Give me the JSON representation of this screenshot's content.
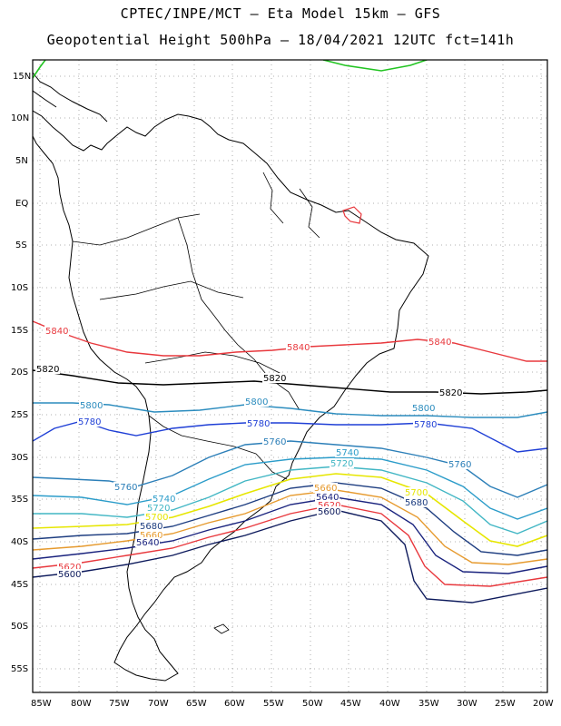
{
  "header": {
    "line1": "CPTEC/INPE/MCT –  Eta Model 15km – GFS",
    "line2": "Geopotential Height 500hPa – 18/04/2021 12UTC fct=141h"
  },
  "map": {
    "lat_labels": [
      "15N",
      "10N",
      "5N",
      "EQ",
      "5S",
      "10S",
      "15S",
      "20S",
      "25S",
      "30S",
      "35S",
      "40S",
      "45S",
      "50S",
      "55S"
    ],
    "lon_labels": [
      "85W",
      "80W",
      "75W",
      "70W",
      "65W",
      "60W",
      "55W",
      "50W",
      "45W",
      "40W",
      "35W",
      "30W",
      "25W",
      "20W"
    ],
    "contours": [
      {
        "level": "5840",
        "color": "#e8383d",
        "labels": [
          "5840",
          "5840",
          "5840"
        ]
      },
      {
        "level": "5820",
        "color": "#000000",
        "labels": [
          "5820",
          "5820",
          "5820"
        ]
      },
      {
        "level": "5800",
        "color": "#2b8cbe",
        "labels": [
          "5800",
          "5800",
          "5800"
        ]
      },
      {
        "level": "5780",
        "color": "#1f3fd6",
        "labels": [
          "5780",
          "5780",
          "5780"
        ]
      },
      {
        "level": "5760",
        "color": "#2c7fb8",
        "labels": [
          "5760",
          "5760",
          "5760"
        ]
      },
      {
        "level": "5740",
        "color": "#2b9cc9",
        "labels": [
          "5740",
          "5740"
        ]
      },
      {
        "level": "5720",
        "color": "#41b6c4",
        "labels": [
          "5720",
          "5720"
        ]
      },
      {
        "level": "5700",
        "color": "#e6e600",
        "labels": [
          "5700",
          "5700"
        ]
      },
      {
        "level": "5680",
        "color": "#1d3d80",
        "labels": [
          "5680",
          "5680"
        ]
      },
      {
        "level": "5660",
        "color": "#e69a2e",
        "labels": [
          "5660",
          "5660"
        ]
      },
      {
        "level": "5640",
        "color": "#1a237e",
        "labels": [
          "5640",
          "5640"
        ]
      },
      {
        "level": "5620",
        "color": "#e8383d",
        "labels": [
          "5620",
          "5620"
        ]
      },
      {
        "level": "5600",
        "color": "#0d1a5c",
        "labels": [
          "5600",
          "5600"
        ]
      }
    ],
    "extra_contour_color": "#22c422"
  }
}
